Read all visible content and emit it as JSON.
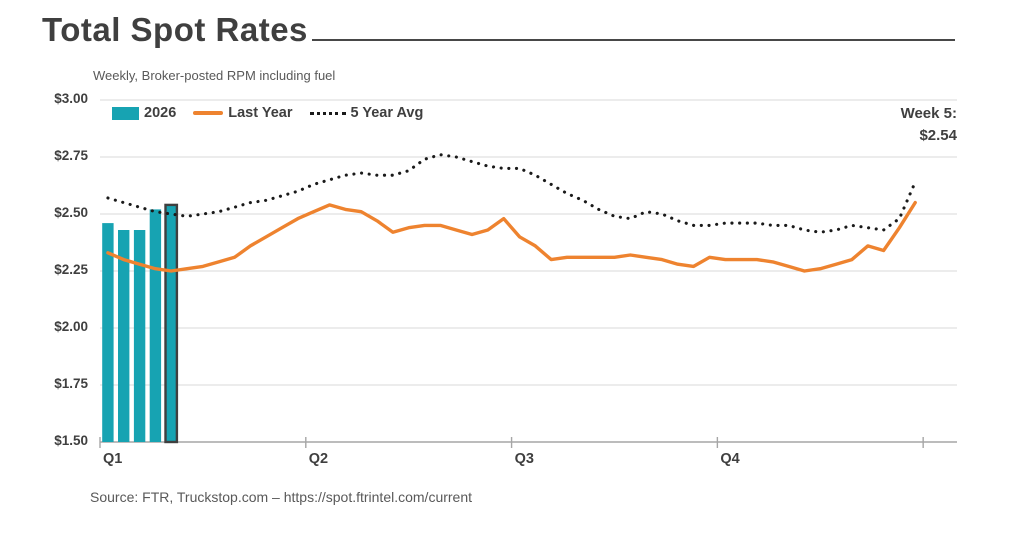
{
  "header": {
    "title": "Total Spot Rates",
    "subtitle": "Weekly, Broker-posted RPM including fuel"
  },
  "footer": {
    "source": "Source: FTR, Truckstop.com – https://spot.ftrintel.com/current"
  },
  "colors": {
    "teal": "#17a3b2",
    "orange": "#ee832f",
    "dotted": "#1a1a1a",
    "grid": "#d9d9d9",
    "axis": "#a6a6a6",
    "bar_highlight_border": "#3f3f3f"
  },
  "chart_data": {
    "type": "bar+line",
    "title": "Total Spot Rates",
    "subtitle": "Weekly, Broker-posted RPM including fuel",
    "ylim": [
      1.5,
      3.0
    ],
    "y_ticks": [
      "$3.00",
      "$2.75",
      "$2.50",
      "$2.25",
      "$2.00",
      "$1.75",
      "$1.50"
    ],
    "y_tick_values": [
      3.0,
      2.75,
      2.5,
      2.25,
      2.0,
      1.75,
      1.5
    ],
    "x_quarters": [
      "Q1",
      "Q2",
      "Q3",
      "Q4"
    ],
    "weeks_per_quarter": 13,
    "grid": true,
    "legend_position": "top-left",
    "legend": [
      {
        "label": "2026",
        "style": "bar"
      },
      {
        "label": "Last Year",
        "style": "solid"
      },
      {
        "label": "5 Year Avg",
        "style": "dotted"
      }
    ],
    "callout": {
      "label": "Week 5:",
      "value": "$2.54"
    },
    "bar_series": {
      "name": "2026",
      "weeks": [
        1,
        2,
        3,
        4,
        5
      ],
      "values": [
        2.46,
        2.43,
        2.43,
        2.52,
        2.54
      ],
      "highlighted_week": 5
    },
    "line_series": [
      {
        "name": "Last Year",
        "style": "solid",
        "values": [
          2.33,
          2.3,
          2.28,
          2.26,
          2.25,
          2.26,
          2.27,
          2.29,
          2.31,
          2.36,
          2.4,
          2.44,
          2.48,
          2.51,
          2.54,
          2.52,
          2.51,
          2.47,
          2.42,
          2.44,
          2.45,
          2.45,
          2.43,
          2.41,
          2.43,
          2.48,
          2.4,
          2.36,
          2.3,
          2.31,
          2.31,
          2.31,
          2.31,
          2.32,
          2.31,
          2.3,
          2.28,
          2.27,
          2.31,
          2.3,
          2.3,
          2.3,
          2.29,
          2.27,
          2.25,
          2.26,
          2.28,
          2.3,
          2.36,
          2.34,
          2.44,
          2.55
        ]
      },
      {
        "name": "5 Year Avg",
        "style": "dotted",
        "values": [
          2.57,
          2.55,
          2.53,
          2.51,
          2.5,
          2.49,
          2.5,
          2.51,
          2.53,
          2.55,
          2.56,
          2.58,
          2.6,
          2.63,
          2.65,
          2.67,
          2.68,
          2.67,
          2.67,
          2.69,
          2.74,
          2.76,
          2.75,
          2.73,
          2.71,
          2.7,
          2.7,
          2.67,
          2.63,
          2.59,
          2.56,
          2.52,
          2.49,
          2.48,
          2.51,
          2.5,
          2.47,
          2.45,
          2.45,
          2.46,
          2.46,
          2.46,
          2.45,
          2.45,
          2.43,
          2.42,
          2.43,
          2.45,
          2.44,
          2.43,
          2.48,
          2.64
        ]
      }
    ]
  }
}
